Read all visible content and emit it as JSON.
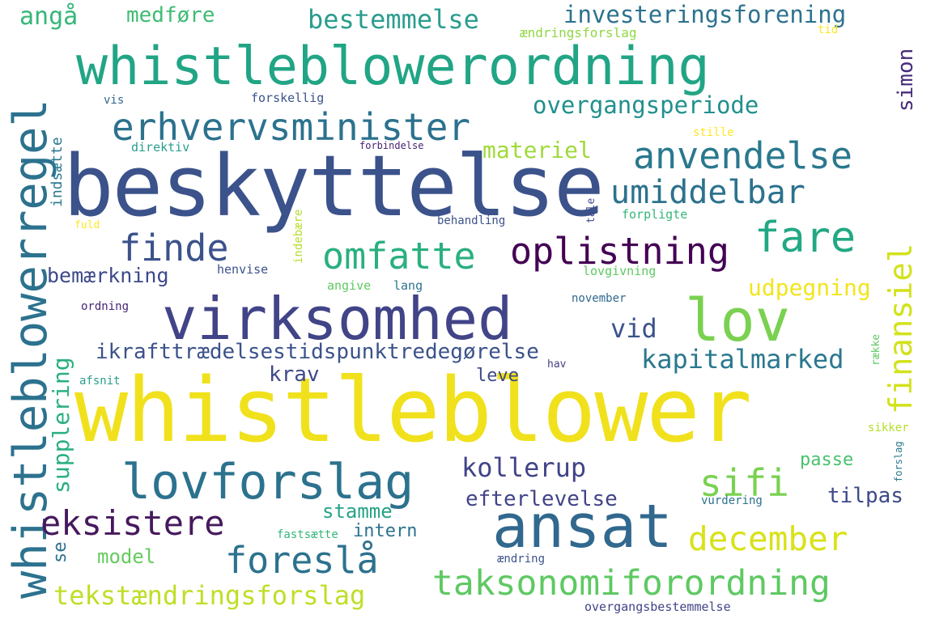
{
  "palette": {
    "dark_purple": "#440154",
    "indigo": "#414487",
    "blue": "#3b528b",
    "steel": "#31688e",
    "teal_blue": "#2c728e",
    "teal": "#21908d",
    "green_teal": "#27ad81",
    "green": "#5ec962",
    "lime": "#aadc32",
    "yellow": "#fde725"
  },
  "words": [
    {
      "text": "whistleblower",
      "color": "#f0e11c"
    },
    {
      "text": "beskyttelse",
      "color": "#3b528b"
    },
    {
      "text": "whistleblowerordning",
      "color": "#21a585"
    },
    {
      "text": "virksomhed",
      "color": "#414487"
    },
    {
      "text": "ansat",
      "color": "#31688e"
    },
    {
      "text": "lovforslag",
      "color": "#2c728e"
    },
    {
      "text": "lov",
      "color": "#7ad151"
    },
    {
      "text": "whistleblowerregel",
      "color": "#2c728e"
    },
    {
      "text": "taksonomiforordning",
      "color": "#5ec962"
    },
    {
      "text": "erhvervsminister",
      "color": "#2c728e"
    },
    {
      "text": "finde",
      "color": "#3b528b"
    },
    {
      "text": "fare",
      "color": "#22a884"
    },
    {
      "text": "anvendelse",
      "color": "#2a788e"
    },
    {
      "text": "oplistning",
      "color": "#440154"
    },
    {
      "text": "umiddelbar",
      "color": "#2c728e"
    },
    {
      "text": "omfatte",
      "color": "#2ab07f"
    },
    {
      "text": "finansiel",
      "color": "#d2e21b"
    },
    {
      "text": "foreslå",
      "color": "#2c728e"
    },
    {
      "text": "december",
      "color": "#d8e219"
    },
    {
      "text": "eksistere",
      "color": "#46195e"
    },
    {
      "text": "sifi",
      "color": "#7ad151"
    },
    {
      "text": "tekstændringsforslag",
      "color": "#bddf26"
    },
    {
      "text": "kapitalmarked",
      "color": "#2a788e"
    },
    {
      "text": "ikrafttrædelsestidspunktredegørelse",
      "color": "#3b528b"
    },
    {
      "text": "investeringsforening",
      "color": "#2c728e"
    },
    {
      "text": "bestemmelse",
      "color": "#2a9d8e"
    },
    {
      "text": "overgangsperiode",
      "color": "#21908d"
    },
    {
      "text": "kollerup",
      "color": "#414487"
    },
    {
      "text": "supplering",
      "color": "#2ab07f"
    },
    {
      "text": "udpegning",
      "color": "#f1e51d"
    },
    {
      "text": "vid",
      "color": "#3b528b"
    },
    {
      "text": "bemærkning",
      "color": "#3e4989"
    },
    {
      "text": "efterlevelse",
      "color": "#414487"
    },
    {
      "text": "angå",
      "color": "#35b779"
    },
    {
      "text": "medføre",
      "color": "#3fbc73"
    },
    {
      "text": "materiel",
      "color": "#9fda3a"
    },
    {
      "text": "simon",
      "color": "#472c7a"
    },
    {
      "text": "krav",
      "color": "#3e4989"
    },
    {
      "text": "leve",
      "color": "#3e4989"
    },
    {
      "text": "tilpas",
      "color": "#3e4989"
    },
    {
      "text": "stamme",
      "color": "#26a386"
    },
    {
      "text": "intern",
      "color": "#2c728e"
    },
    {
      "text": "passe",
      "color": "#4ac16d"
    },
    {
      "text": "model",
      "color": "#65cb5e"
    },
    {
      "text": "indsætte",
      "color": "#2a788e"
    },
    {
      "text": "se",
      "color": "#2c728e"
    },
    {
      "text": "ændringsforslag",
      "color": "#8fd744"
    },
    {
      "text": "tid",
      "color": "#fde725"
    },
    {
      "text": "vis",
      "color": "#31688e"
    },
    {
      "text": "forskellig",
      "color": "#3b528b"
    },
    {
      "text": "direktiv",
      "color": "#2a9d8e"
    },
    {
      "text": "forbindelse",
      "color": "#482173"
    },
    {
      "text": "stille",
      "color": "#fde725"
    },
    {
      "text": "indebære",
      "color": "#b5de2b"
    },
    {
      "text": "tale",
      "color": "#3e4989"
    },
    {
      "text": "fuld",
      "color": "#fde725"
    },
    {
      "text": "behandling",
      "color": "#3b528b"
    },
    {
      "text": "forpligte",
      "color": "#35b779"
    },
    {
      "text": "henvise",
      "color": "#3b528b"
    },
    {
      "text": "lovgivning",
      "color": "#5ec962"
    },
    {
      "text": "angive",
      "color": "#5ec962"
    },
    {
      "text": "lang",
      "color": "#2c728e"
    },
    {
      "text": "ordning",
      "color": "#482475"
    },
    {
      "text": "november",
      "color": "#31688e"
    },
    {
      "text": "række",
      "color": "#5ec962"
    },
    {
      "text": "afsnit",
      "color": "#2a9d8e"
    },
    {
      "text": "hav",
      "color": "#433e85"
    },
    {
      "text": "sikker",
      "color": "#b5de2b"
    },
    {
      "text": "forslag",
      "color": "#2a788e"
    },
    {
      "text": "vurdering",
      "color": "#2c728e"
    },
    {
      "text": "fastsætte",
      "color": "#35b779"
    },
    {
      "text": "ændring",
      "color": "#3b528b"
    },
    {
      "text": "overgangsbestemmelse",
      "color": "#414487"
    }
  ]
}
